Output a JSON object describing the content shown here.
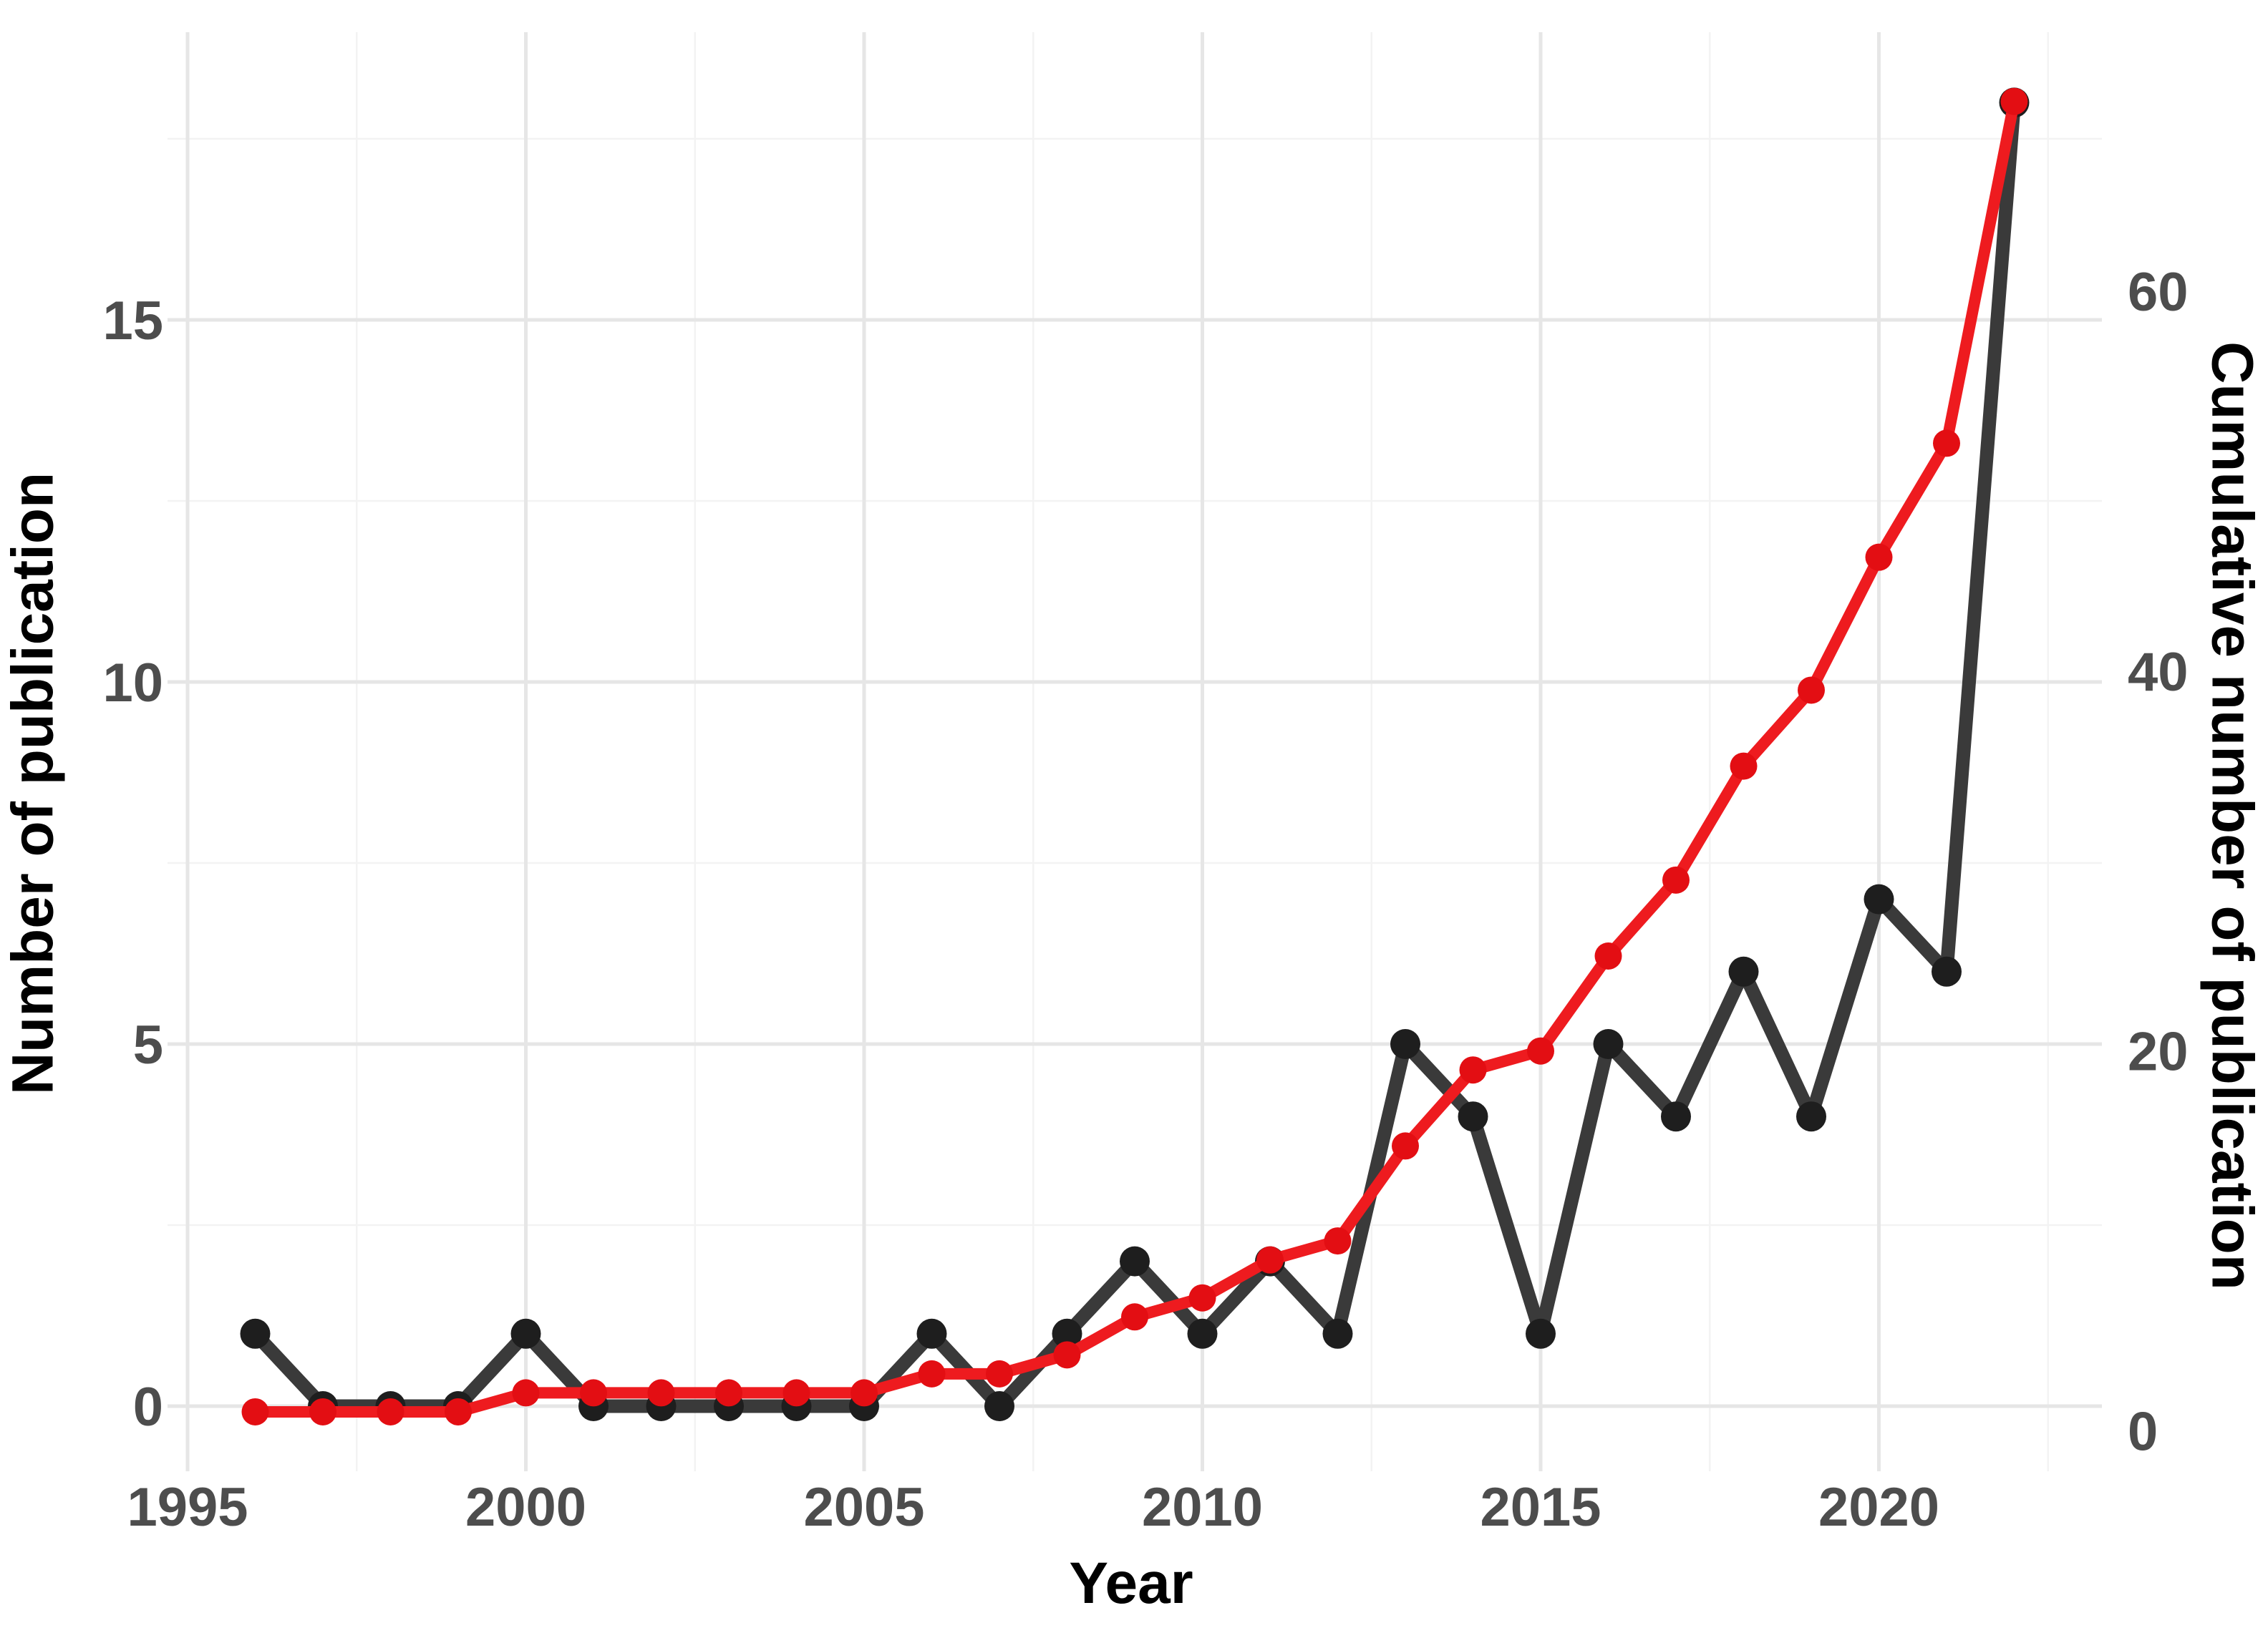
{
  "chart_data": {
    "type": "line",
    "title": "",
    "xlabel": "Year",
    "ylabel_left": "Number of publication",
    "ylabel_right": "Cumulative number of publication",
    "x": [
      1996,
      1997,
      1998,
      1999,
      2000,
      2001,
      2002,
      2003,
      2004,
      2005,
      2006,
      2007,
      2008,
      2009,
      2010,
      2011,
      2012,
      2013,
      2014,
      2015,
      2016,
      2017,
      2018,
      2019,
      2020,
      2021,
      2022
    ],
    "series": [
      {
        "name": "Number of publication",
        "axis": "left",
        "line_color": "#3a3a3a",
        "point_color": "#1e1e1e",
        "values": [
          1,
          0,
          0,
          0,
          1,
          0,
          0,
          0,
          0,
          0,
          1,
          0,
          1,
          2,
          1,
          2,
          1,
          5,
          4,
          1,
          5,
          4,
          6,
          4,
          7,
          6,
          18
        ]
      },
      {
        "name": "Cumulative number of publication",
        "axis": "right",
        "line_color": "#ee1b1f",
        "point_color": "#e30e13",
        "values": [
          1,
          1,
          1,
          1,
          2,
          2,
          2,
          2,
          2,
          2,
          3,
          3,
          4,
          6,
          7,
          9,
          10,
          15,
          19,
          20,
          25,
          29,
          35,
          39,
          46,
          52,
          70
        ]
      }
    ],
    "x_ticks": [
      1995,
      2000,
      2005,
      2010,
      2015,
      2020
    ],
    "x_minor_ticks": [
      1997.5,
      2002.5,
      2007.5,
      2012.5,
      2017.5,
      2022.5
    ],
    "y_left_ticks": [
      0,
      5,
      10,
      15
    ],
    "y_left_minor_ticks": [
      2.5,
      7.5,
      12.5,
      17.5
    ],
    "y_right_ticks": [
      0,
      20,
      40,
      60
    ],
    "xlim": [
      1994.7,
      2023.3
    ],
    "ylim_left": [
      -0.9,
      18.9
    ],
    "ylim_right": [
      -2.1,
      73.6
    ],
    "grid": true,
    "legend": false,
    "colors": {
      "background": "#ffffff",
      "grid_major": "#e6e6e6",
      "grid_minor": "#f3f3f3",
      "tick_text": "#4d4d4d",
      "axis_title_text": "#000000"
    }
  }
}
